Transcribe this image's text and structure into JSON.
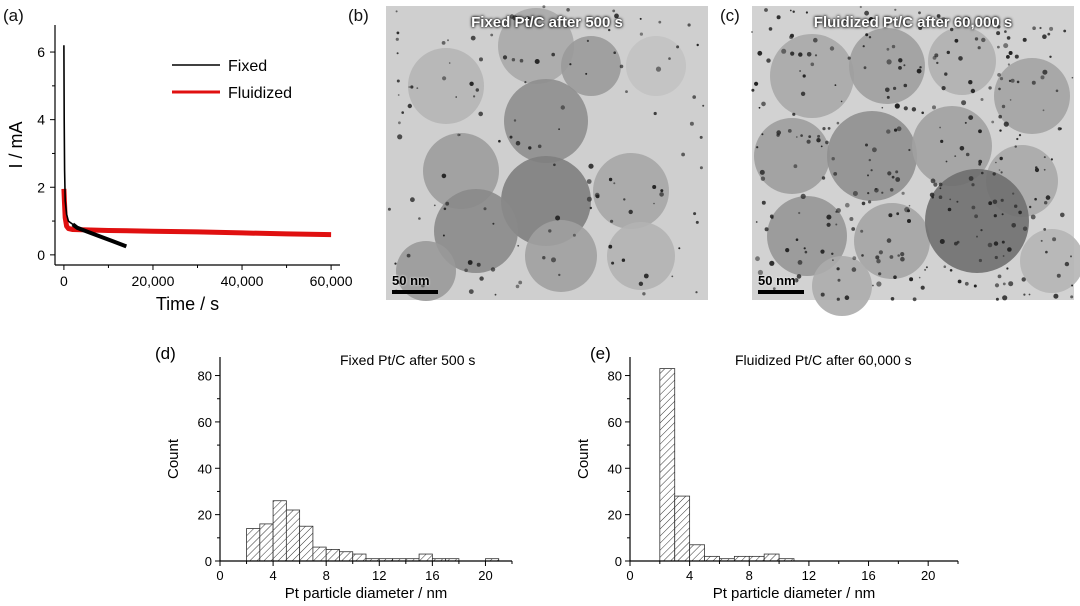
{
  "panels": {
    "a": {
      "letter": "(a)"
    },
    "b": {
      "letter": "(b)",
      "title": "Fixed Pt/C after 500 s",
      "scale_label": "50 nm"
    },
    "c": {
      "letter": "(c)",
      "title": "Fluidized Pt/C after 60,000 s",
      "scale_label": "50 nm"
    },
    "d": {
      "letter": "(d)"
    },
    "e": {
      "letter": "(e)"
    }
  },
  "colors": {
    "fixed": "#000000",
    "fluidized": "#e01010",
    "bar_fill": "#ffffff",
    "hatch": "#333333",
    "tem_bg_b": "#cfcfcf",
    "tem_bg_c": "#d2d2d2"
  },
  "chart_data": [
    {
      "panel": "a",
      "type": "line",
      "xlabel": "Time / s",
      "ylabel": "I / mA",
      "xlim": [
        -2000,
        62000
      ],
      "ylim": [
        -0.3,
        6.8
      ],
      "xticks": [
        0,
        20000,
        40000,
        60000
      ],
      "xtick_labels": [
        "0",
        "20,000",
        "40,000",
        "60,000"
      ],
      "yticks": [
        0,
        2,
        4,
        6
      ],
      "ytick_labels": [
        "0",
        "2",
        "4",
        "6"
      ],
      "legend": {
        "placement": "top-right",
        "entries": [
          "Fixed",
          "Fluidized"
        ]
      },
      "series": [
        {
          "name": "Fixed",
          "x": [
            0,
            60,
            150,
            300,
            600,
            1000,
            2000,
            3000,
            5000,
            8000,
            11000,
            14000
          ],
          "y": [
            6.2,
            4.0,
            2.5,
            1.6,
            1.2,
            1.0,
            0.9,
            0.8,
            0.7,
            0.55,
            0.4,
            0.25
          ]
        },
        {
          "name": "Fluidized",
          "x": [
            0,
            100,
            300,
            600,
            1000,
            2000,
            4000,
            10000,
            20000,
            30000,
            40000,
            50000,
            60000
          ],
          "y": [
            1.95,
            1.6,
            1.1,
            0.85,
            0.78,
            0.75,
            0.74,
            0.72,
            0.7,
            0.68,
            0.65,
            0.62,
            0.6
          ]
        }
      ]
    },
    {
      "panel": "d",
      "type": "bar",
      "annotation": "Fixed Pt/C after 500 s",
      "xlabel": "Pt particle diameter / nm",
      "ylabel": "Count",
      "xlim": [
        0,
        22
      ],
      "ylim": [
        0,
        88
      ],
      "xticks": [
        0,
        4,
        8,
        12,
        16,
        20
      ],
      "xtick_labels": [
        "0",
        "4",
        "8",
        "12",
        "16",
        "20"
      ],
      "yticks": [
        0,
        20,
        40,
        60,
        80
      ],
      "ytick_labels": [
        "0",
        "20",
        "40",
        "60",
        "80"
      ],
      "bin_width": 1,
      "bin_starts": [
        2,
        3,
        4,
        5,
        6,
        7,
        8,
        9,
        10,
        11,
        12,
        13,
        14,
        15,
        16,
        17,
        18,
        19,
        20
      ],
      "values": [
        14,
        16,
        26,
        22,
        15,
        6,
        5,
        4,
        3,
        1,
        1,
        1,
        1,
        3,
        1,
        1,
        0,
        0,
        1
      ]
    },
    {
      "panel": "e",
      "type": "bar",
      "annotation": "Fluidized Pt/C after 60,000 s",
      "xlabel": "Pt particle diameter / nm",
      "ylabel": "Count",
      "xlim": [
        0,
        22
      ],
      "ylim": [
        0,
        88
      ],
      "xticks": [
        0,
        4,
        8,
        12,
        16,
        20
      ],
      "xtick_labels": [
        "0",
        "4",
        "8",
        "12",
        "16",
        "20"
      ],
      "yticks": [
        0,
        20,
        40,
        60,
        80
      ],
      "ytick_labels": [
        "0",
        "20",
        "40",
        "60",
        "80"
      ],
      "bin_width": 1,
      "bin_starts": [
        2,
        3,
        4,
        5,
        6,
        7,
        8,
        9,
        10,
        11,
        12,
        13,
        14,
        15,
        16,
        17,
        18,
        19,
        20
      ],
      "values": [
        83,
        28,
        7,
        2,
        1,
        2,
        2,
        3,
        1,
        0,
        0,
        0,
        0,
        0,
        0,
        0,
        0,
        0,
        0
      ]
    }
  ]
}
